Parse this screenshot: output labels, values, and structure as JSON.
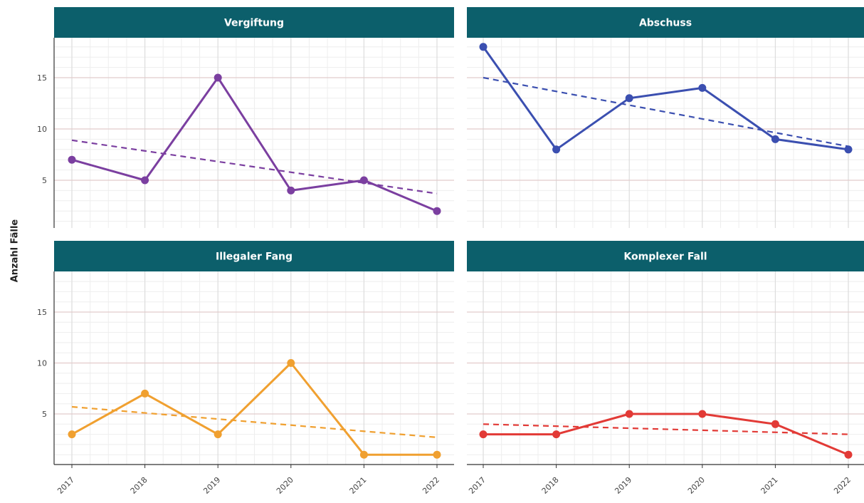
{
  "y_axis_label": "Anzahl Fälle",
  "chart_data": {
    "type": "line",
    "layout": "2x2 facets with shared axes",
    "x": [
      "2017",
      "2018",
      "2019",
      "2020",
      "2021",
      "2022"
    ],
    "ylabel": "Anzahl Fälle",
    "xlabel": "",
    "ylim": [
      0,
      19
    ],
    "yticks": [
      5,
      10,
      15
    ],
    "grid": true,
    "trend_line_style": "dashed linear trend",
    "panels": [
      {
        "title": "Vergiftung",
        "color": "#7b3fa0",
        "values": [
          7,
          5,
          15,
          4,
          5,
          2
        ],
        "trend": [
          8.9,
          3.7
        ]
      },
      {
        "title": "Abschuss",
        "color": "#3b4fb0",
        "values": [
          18,
          8,
          13,
          14,
          9,
          8
        ],
        "trend": [
          15.0,
          8.3
        ]
      },
      {
        "title": "Illegaler Fang",
        "color": "#f0a030",
        "values": [
          3,
          7,
          3,
          10,
          1,
          1
        ],
        "trend": [
          5.7,
          2.7
        ]
      },
      {
        "title": "Komplexer Fall",
        "color": "#e23a36",
        "values": [
          3,
          3,
          5,
          5,
          4,
          1
        ],
        "trend": [
          4.0,
          3.0
        ]
      }
    ]
  }
}
